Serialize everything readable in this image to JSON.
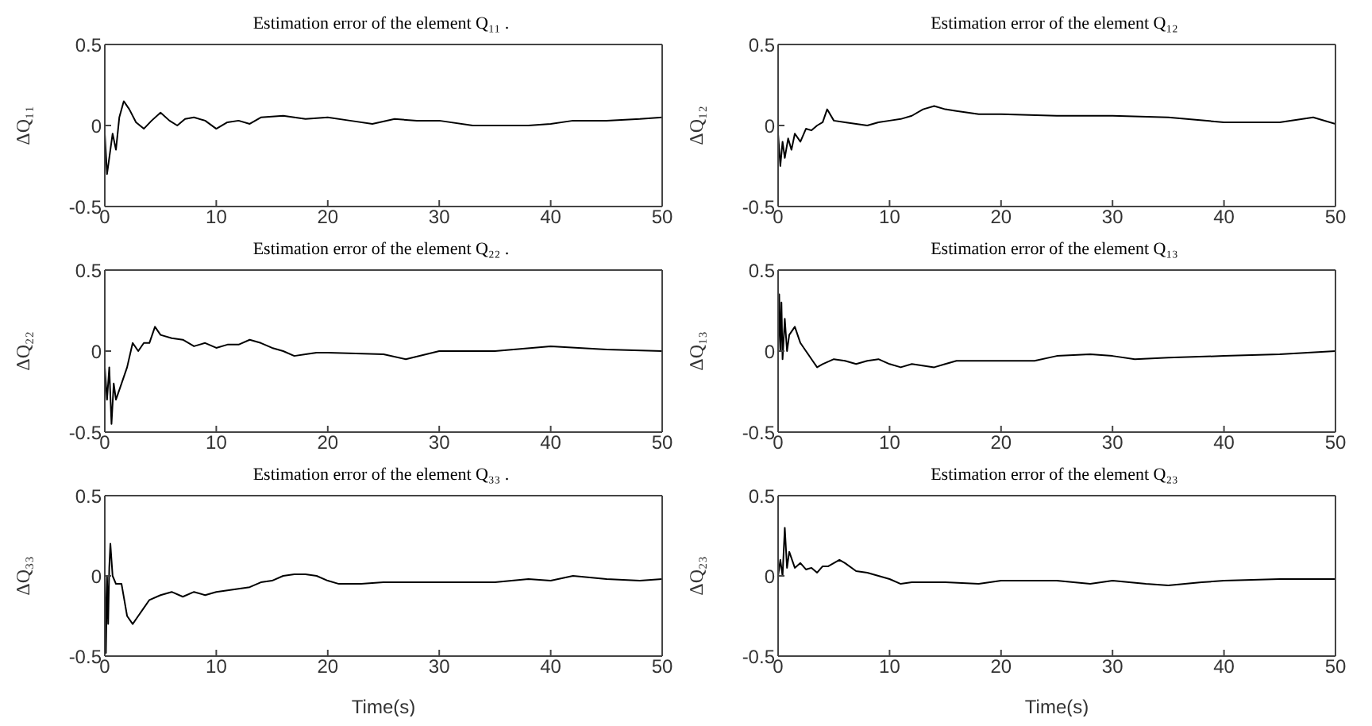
{
  "chart_data": [
    {
      "type": "line",
      "title": "Estimation error of the element Q₁₁ .",
      "ylabel": "ΔQ₁₁",
      "xlim": [
        0,
        50
      ],
      "xticks": [
        0,
        10,
        20,
        30,
        40,
        50
      ],
      "ylim": [
        -0.5,
        0.5
      ],
      "yticks": [
        -0.5,
        0,
        0.5
      ],
      "legend": false,
      "marker": "none",
      "line_style": "solid",
      "series": [
        {
          "color": "#000000",
          "x": [
            0,
            0.2,
            0.4,
            0.7,
            1,
            1.3,
            1.7,
            2.2,
            2.8,
            3.5,
            4.2,
            5,
            5.8,
            6.5,
            7.2,
            8,
            9,
            10,
            11,
            12,
            13,
            14,
            16,
            18,
            20,
            22,
            24,
            26,
            28,
            30,
            33,
            36,
            38,
            40,
            42,
            45,
            48,
            50
          ],
          "values": [
            -0.05,
            -0.3,
            -0.2,
            -0.05,
            -0.15,
            0.05,
            0.15,
            0.1,
            0.02,
            -0.02,
            0.03,
            0.08,
            0.03,
            0,
            0.04,
            0.05,
            0.03,
            -0.02,
            0.02,
            0.03,
            0.01,
            0.05,
            0.06,
            0.04,
            0.05,
            0.03,
            0.01,
            0.04,
            0.03,
            0.03,
            0,
            0,
            0,
            0.01,
            0.03,
            0.03,
            0.04,
            0.05
          ]
        }
      ]
    },
    {
      "type": "line",
      "title": "Estimation error of the element Q₁₂",
      "ylabel": "ΔQ₁₂",
      "xlim": [
        0,
        50
      ],
      "xticks": [
        0,
        10,
        20,
        30,
        40,
        50
      ],
      "ylim": [
        -0.5,
        0.5
      ],
      "yticks": [
        -0.5,
        0,
        0.5
      ],
      "legend": false,
      "marker": "none",
      "line_style": "solid",
      "series": [
        {
          "color": "#000000",
          "x": [
            0,
            0.2,
            0.4,
            0.6,
            0.9,
            1.2,
            1.5,
            2,
            2.5,
            3,
            3.5,
            4,
            4.4,
            5,
            6,
            7,
            8,
            9,
            10,
            11,
            12,
            13,
            14,
            15,
            16,
            18,
            20,
            25,
            30,
            35,
            40,
            45,
            48,
            50
          ],
          "values": [
            -0.05,
            -0.25,
            -0.1,
            -0.2,
            -0.08,
            -0.15,
            -0.05,
            -0.1,
            -0.02,
            -0.03,
            0,
            0.02,
            0.1,
            0.03,
            0.02,
            0.01,
            0,
            0.02,
            0.03,
            0.04,
            0.06,
            0.1,
            0.12,
            0.1,
            0.09,
            0.07,
            0.07,
            0.06,
            0.06,
            0.05,
            0.02,
            0.02,
            0.05,
            0.01
          ]
        }
      ]
    },
    {
      "type": "line",
      "title": "Estimation error of the element Q₂₂ .",
      "ylabel": "ΔQ₂₂",
      "xlim": [
        0,
        50
      ],
      "xticks": [
        0,
        10,
        20,
        30,
        40,
        50
      ],
      "ylim": [
        -0.5,
        0.5
      ],
      "yticks": [
        -0.5,
        0,
        0.5
      ],
      "legend": false,
      "marker": "none",
      "line_style": "solid",
      "series": [
        {
          "color": "#000000",
          "x": [
            0,
            0.2,
            0.4,
            0.6,
            0.8,
            1,
            1.5,
            2,
            2.5,
            3,
            3.5,
            4,
            4.5,
            5,
            6,
            7,
            8,
            9,
            10,
            11,
            12,
            13,
            14,
            15,
            16,
            17,
            18,
            19,
            20,
            25,
            27,
            30,
            35,
            40,
            45,
            50
          ],
          "values": [
            -0.1,
            -0.3,
            -0.1,
            -0.45,
            -0.2,
            -0.3,
            -0.2,
            -0.1,
            0.05,
            0,
            0.05,
            0.05,
            0.15,
            0.1,
            0.08,
            0.07,
            0.03,
            0.05,
            0.02,
            0.04,
            0.04,
            0.07,
            0.05,
            0.02,
            0,
            -0.03,
            -0.02,
            -0.01,
            -0.01,
            -0.02,
            -0.05,
            0,
            0,
            0.03,
            0.01,
            0
          ]
        }
      ]
    },
    {
      "type": "line",
      "title": "Estimation error of the element Q₁₃",
      "ylabel": "ΔQ₁₃",
      "xlim": [
        0,
        50
      ],
      "xticks": [
        0,
        10,
        20,
        30,
        40,
        50
      ],
      "ylim": [
        -0.5,
        0.5
      ],
      "yticks": [
        -0.5,
        0,
        0.5
      ],
      "legend": false,
      "marker": "none",
      "line_style": "solid",
      "series": [
        {
          "color": "#000000",
          "x": [
            0,
            0.1,
            0.2,
            0.3,
            0.4,
            0.6,
            0.8,
            1,
            1.5,
            2,
            2.5,
            3,
            3.5,
            4,
            5,
            6,
            7,
            8,
            9,
            10,
            11,
            12,
            14,
            15,
            16,
            20,
            23,
            25,
            28,
            30,
            32,
            35,
            40,
            45,
            50
          ],
          "values": [
            0,
            0.35,
            0,
            0.3,
            -0.05,
            0.2,
            0,
            0.1,
            0.15,
            0.05,
            0,
            -0.05,
            -0.1,
            -0.08,
            -0.05,
            -0.06,
            -0.08,
            -0.06,
            -0.05,
            -0.08,
            -0.1,
            -0.08,
            -0.1,
            -0.08,
            -0.06,
            -0.06,
            -0.06,
            -0.03,
            -0.02,
            -0.03,
            -0.05,
            -0.04,
            -0.03,
            -0.02,
            0
          ]
        }
      ]
    },
    {
      "type": "line",
      "title": "Estimation error of the element Q₃₃ .",
      "xlabel": "Time(s)",
      "ylabel": "ΔQ₃₃",
      "xlim": [
        0,
        50
      ],
      "xticks": [
        0,
        10,
        20,
        30,
        40,
        50
      ],
      "ylim": [
        -0.5,
        0.5
      ],
      "yticks": [
        -0.5,
        0,
        0.5
      ],
      "legend": false,
      "marker": "none",
      "line_style": "solid",
      "series": [
        {
          "color": "#000000",
          "x": [
            0,
            0.1,
            0.2,
            0.3,
            0.4,
            0.5,
            0.7,
            1,
            1.5,
            2,
            2.5,
            3,
            3.5,
            4,
            5,
            6,
            7,
            8,
            9,
            10,
            12,
            13,
            14,
            15,
            16,
            17,
            18,
            19,
            20,
            21,
            23,
            25,
            30,
            35,
            38,
            40,
            42,
            45,
            48,
            50
          ],
          "values": [
            0,
            -0.48,
            0,
            -0.3,
            0.05,
            0.2,
            0,
            -0.05,
            -0.05,
            -0.25,
            -0.3,
            -0.25,
            -0.2,
            -0.15,
            -0.12,
            -0.1,
            -0.13,
            -0.1,
            -0.12,
            -0.1,
            -0.08,
            -0.07,
            -0.04,
            -0.03,
            0,
            0.01,
            0.01,
            0,
            -0.03,
            -0.05,
            -0.05,
            -0.04,
            -0.04,
            -0.04,
            -0.02,
            -0.03,
            0,
            -0.02,
            -0.03,
            -0.02
          ]
        }
      ]
    },
    {
      "type": "line",
      "title": "Estimation error of the element Q₂₃",
      "xlabel": "Time(s)",
      "ylabel": "ΔQ₂₃",
      "xlim": [
        0,
        50
      ],
      "xticks": [
        0,
        10,
        20,
        30,
        40,
        50
      ],
      "ylim": [
        -0.5,
        0.5
      ],
      "yticks": [
        -0.5,
        0,
        0.5
      ],
      "legend": false,
      "marker": "none",
      "line_style": "solid",
      "series": [
        {
          "color": "#000000",
          "x": [
            0,
            0.2,
            0.4,
            0.6,
            0.8,
            1,
            1.5,
            2,
            2.5,
            3,
            3.5,
            4,
            4.5,
            5,
            5.5,
            6,
            7,
            8,
            9,
            10,
            11,
            12,
            15,
            18,
            20,
            25,
            28,
            30,
            33,
            35,
            38,
            40,
            45,
            50
          ],
          "values": [
            0,
            0.1,
            0,
            0.3,
            0.05,
            0.15,
            0.05,
            0.08,
            0.04,
            0.05,
            0.02,
            0.06,
            0.06,
            0.08,
            0.1,
            0.08,
            0.03,
            0.02,
            0,
            -0.02,
            -0.05,
            -0.04,
            -0.04,
            -0.05,
            -0.03,
            -0.03,
            -0.05,
            -0.03,
            -0.05,
            -0.06,
            -0.04,
            -0.03,
            -0.02,
            -0.02
          ]
        }
      ]
    }
  ]
}
